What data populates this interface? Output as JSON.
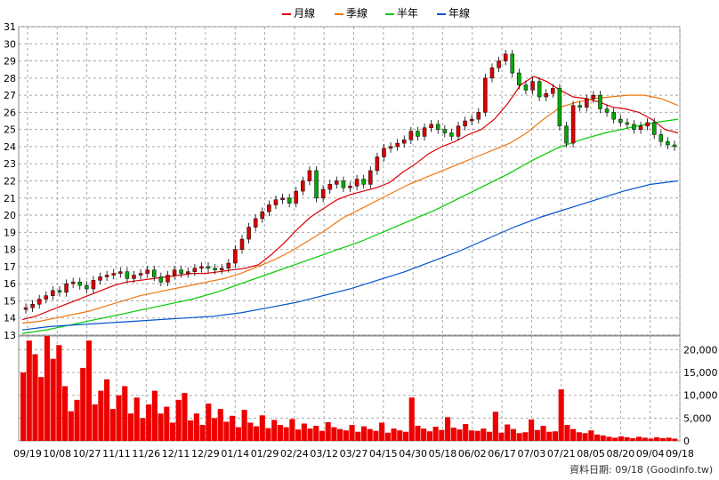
{
  "legend": {
    "month": {
      "label": "月線",
      "color": "#dd0000"
    },
    "quarter": {
      "label": "季線",
      "color": "#ee7711"
    },
    "half": {
      "label": "半年",
      "color": "#00cc00"
    },
    "year": {
      "label": "年線",
      "color": "#0055cc"
    }
  },
  "credit": "資料日期: 09/18  (Goodinfo.tw)",
  "chart_data": [
    {
      "type": "candlestick",
      "ylim": [
        13,
        31
      ],
      "y_ticks": [
        13,
        14,
        15,
        16,
        17,
        18,
        19,
        20,
        21,
        22,
        23,
        24,
        25,
        26,
        27,
        28,
        29,
        30,
        31
      ],
      "x_ticks": [
        "09/19",
        "10/08",
        "10/27",
        "11/11",
        "11/26",
        "12/11",
        "12/29",
        "01/14",
        "01/29",
        "02/24",
        "03/12",
        "03/27",
        "04/15",
        "04/30",
        "05/18",
        "06/02",
        "06/17",
        "07/03",
        "07/21",
        "08/05",
        "08/20",
        "09/04",
        "09/18"
      ],
      "close_series": [
        14.6,
        14.8,
        15.1,
        15.3,
        15.6,
        15.5,
        16.0,
        16.1,
        15.9,
        15.7,
        16.2,
        16.4,
        16.5,
        16.6,
        16.7,
        16.3,
        16.5,
        16.6,
        16.8,
        16.4,
        16.1,
        16.5,
        16.8,
        16.6,
        16.7,
        16.9,
        17.0,
        16.9,
        16.8,
        16.9,
        17.2,
        18.0,
        18.6,
        19.3,
        19.8,
        20.2,
        20.6,
        20.9,
        21.0,
        20.7,
        21.4,
        22.0,
        22.6,
        21.0,
        21.5,
        21.8,
        22.0,
        21.6,
        21.7,
        22.1,
        21.8,
        22.6,
        23.4,
        23.9,
        24.0,
        24.2,
        24.4,
        24.9,
        24.6,
        25.1,
        25.3,
        25.0,
        24.8,
        24.6,
        25.2,
        25.5,
        25.6,
        26.0,
        28.0,
        28.6,
        29.0,
        29.4,
        28.3,
        27.6,
        27.3,
        27.8,
        26.9,
        27.1,
        27.4,
        25.2,
        24.2,
        26.4,
        26.3,
        26.8,
        27.0,
        26.2,
        26.0,
        25.6,
        25.4,
        25.3,
        25.0,
        25.2,
        25.4,
        24.7,
        24.3,
        24.1,
        24.0
      ],
      "series": [
        {
          "name": "月線",
          "values": [
            13.9,
            14.1,
            14.4,
            14.7,
            15.0,
            15.3,
            15.6,
            15.9,
            16.1,
            16.2,
            16.3,
            16.4,
            16.5,
            16.6,
            16.6,
            16.7,
            16.8,
            16.9,
            17.1,
            17.7,
            18.4,
            19.2,
            19.9,
            20.4,
            20.9,
            21.2,
            21.4,
            21.6,
            21.9,
            22.5,
            23.0,
            23.6,
            24.0,
            24.3,
            24.7,
            25.0,
            25.6,
            26.5,
            27.6,
            28.1,
            27.8,
            27.3,
            26.9,
            26.8,
            26.6,
            26.3,
            26.2,
            26.0,
            25.6,
            25.0,
            24.8
          ]
        },
        {
          "name": "季線",
          "values": [
            13.7,
            13.8,
            14.0,
            14.2,
            14.4,
            14.7,
            15.0,
            15.3,
            15.5,
            15.7,
            15.9,
            16.1,
            16.3,
            16.6,
            17.0,
            17.4,
            17.9,
            18.5,
            19.1,
            19.8,
            20.3,
            20.8,
            21.3,
            21.8,
            22.2,
            22.6,
            23.0,
            23.4,
            23.8,
            24.2,
            24.8,
            25.6,
            26.3,
            26.6,
            26.8,
            26.9,
            27.0,
            27.0,
            26.8,
            26.4
          ]
        },
        {
          "name": "半年",
          "values": [
            13.1,
            13.3,
            13.6,
            13.9,
            14.2,
            14.5,
            14.8,
            15.1,
            15.5,
            16.0,
            16.5,
            17.0,
            17.5,
            18.0,
            18.5,
            19.1,
            19.7,
            20.3,
            21.0,
            21.7,
            22.4,
            23.2,
            23.9,
            24.4,
            24.8,
            25.1,
            25.4,
            25.6
          ]
        },
        {
          "name": "年線",
          "values": [
            13.3,
            13.5,
            13.6,
            13.7,
            13.8,
            13.9,
            14.0,
            14.1,
            14.3,
            14.6,
            14.9,
            15.3,
            15.7,
            16.2,
            16.7,
            17.3,
            17.9,
            18.6,
            19.3,
            19.9,
            20.4,
            20.9,
            21.4,
            21.8,
            22.0
          ]
        }
      ]
    },
    {
      "type": "bar",
      "ylim": [
        0,
        23000
      ],
      "y_ticks": [
        "0",
        "5,000",
        "10,000",
        "15,000",
        "20,000"
      ],
      "values": [
        15000,
        22000,
        19000,
        14000,
        23000,
        18000,
        21000,
        12000,
        6500,
        9000,
        16000,
        22000,
        8000,
        11000,
        13500,
        7000,
        10000,
        12000,
        6000,
        9500,
        5000,
        8000,
        11000,
        6000,
        7500,
        4000,
        9000,
        10500,
        4500,
        6000,
        3500,
        8200,
        5000,
        7000,
        4200,
        5500,
        3000,
        6800,
        4000,
        3200,
        5600,
        2800,
        4600,
        3500,
        3000,
        4800,
        2500,
        3800,
        2700,
        3300,
        2200,
        4100,
        3000,
        2600,
        2300,
        3500,
        2000,
        3200,
        2600,
        2200,
        4000,
        1800,
        2700,
        2300,
        2000,
        9500,
        3300,
        2700,
        2100,
        3100,
        2400,
        5200,
        2900,
        2500,
        3700,
        2300,
        2200,
        2700,
        2000,
        6400,
        1800,
        3600,
        2600,
        1700,
        1900,
        4700,
        2400,
        3300,
        2000,
        2100,
        11300,
        3500,
        2600,
        1900,
        1700,
        2300,
        1400,
        1200,
        900,
        700,
        1000,
        800,
        600,
        900,
        700,
        500,
        800,
        600,
        700,
        500
      ]
    }
  ]
}
